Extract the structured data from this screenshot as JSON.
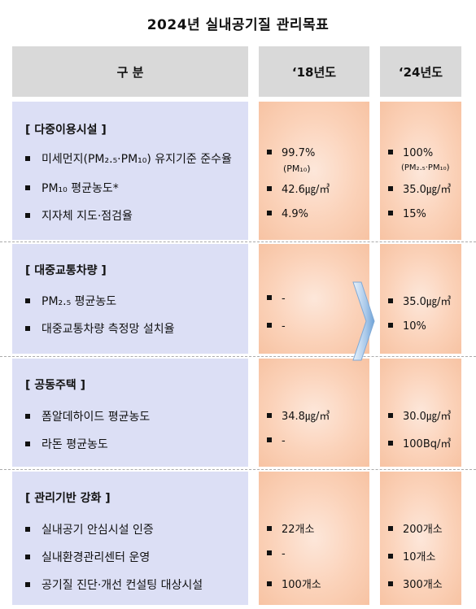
{
  "title": "2024년 실내공기질 관리목표",
  "headers": {
    "category": "구 분",
    "y2018": "‘18년도",
    "y2024": "‘24년도"
  },
  "sections": [
    {
      "name": "[ 다중이용시설 ]",
      "items": [
        {
          "label": "미세먼지(PM₂.₅·PM₁₀) 유지기준 준수율",
          "v18": "99.7%",
          "v18_sub": "(PM₁₀)",
          "v24": "100%",
          "v24_sub": "(PM₂.₅·PM₁₀)"
        },
        {
          "label": "PM₁₀ 평균농도*",
          "v18": "42.6㎍/㎥",
          "v24": "35.0㎍/㎥"
        },
        {
          "label": "지자체 지도·점검율",
          "v18": "4.9%",
          "v24": "15%"
        }
      ]
    },
    {
      "name": "[ 대중교통차량 ]",
      "items": [
        {
          "label": "PM₂.₅ 평균농도",
          "v18": "-",
          "v24": "35.0㎍/㎥"
        },
        {
          "label": "대중교통차량 측정망 설치율",
          "v18": "-",
          "v24": "10%"
        }
      ]
    },
    {
      "name": "[ 공동주택 ]",
      "items": [
        {
          "label": "폼알데하이드 평균농도",
          "v18": "34.8㎍/㎥",
          "v24": "30.0㎍/㎥"
        },
        {
          "label": "라돈 평균농도",
          "v18": "-",
          "v24": "100Bq/㎥"
        }
      ]
    },
    {
      "name": "[ 관리기반 강화 ]",
      "items": [
        {
          "label": "실내공기 안심시설 인증",
          "v18": "22개소",
          "v24": "200개소"
        },
        {
          "label": "실내환경관리센터 운영",
          "v18": "-",
          "v24": "10개소"
        },
        {
          "label": "공기질 진단·개선 컨설팅 대상시설",
          "v18": "100개소",
          "v24": "300개소"
        }
      ]
    }
  ]
}
